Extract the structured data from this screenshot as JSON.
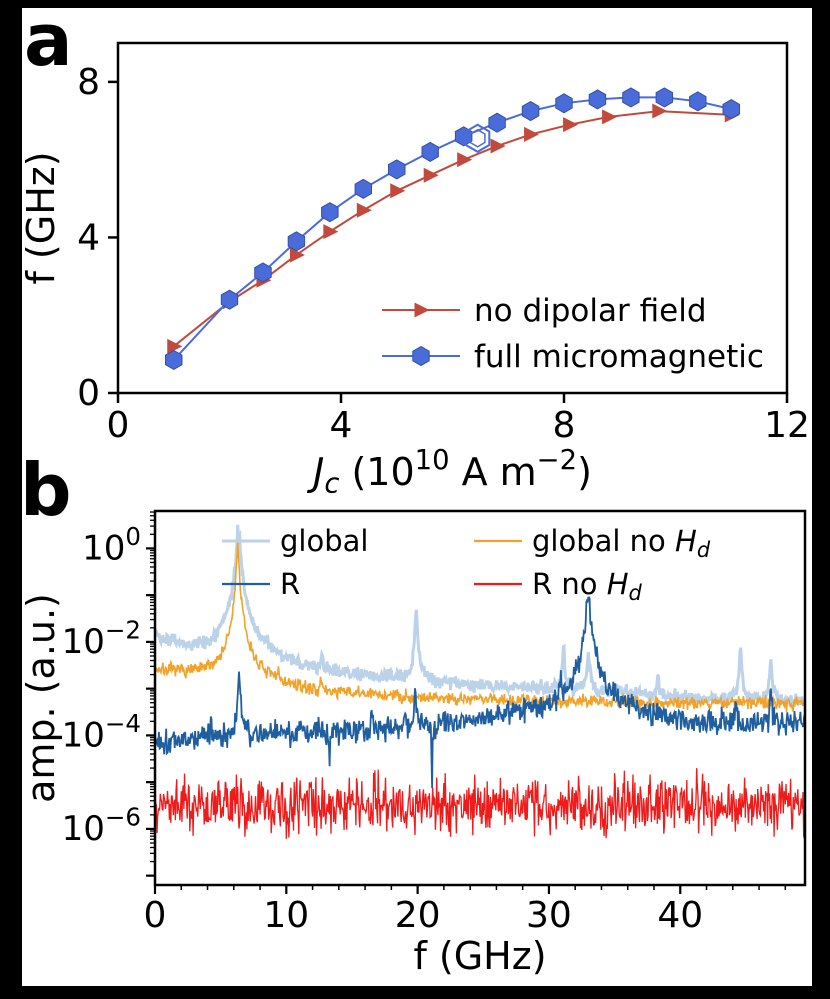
{
  "figure": {
    "panel_a_label": "a",
    "panel_b_label": "b",
    "background": "#000000",
    "panel_background": "#ffffff"
  },
  "colors": {
    "axis": "#000000",
    "panel_a_red": "#c24a3d",
    "panel_a_blue": "#4a6cd9",
    "panel_b_light_blue": "#bcd2e8",
    "panel_b_dark_blue": "#1f5fa0",
    "panel_b_orange": "#f2a229",
    "panel_b_red": "#ee1b1b"
  },
  "chart_data": [
    {
      "id": "panel-a",
      "type": "line",
      "xlabel_parts": [
        {
          "t": "J",
          "style": "italic"
        },
        {
          "t": "c",
          "sub": true,
          "style": "italic"
        },
        {
          "t": " (10"
        },
        {
          "t": "10",
          "sup": true
        },
        {
          "t": " A m"
        },
        {
          "t": "−2",
          "sup": true
        },
        {
          "t": ")"
        }
      ],
      "ylabel": "f (GHz)",
      "xlim": [
        0,
        12
      ],
      "ylim": [
        0,
        9
      ],
      "xticks": [
        0,
        4,
        8,
        12
      ],
      "yticks": [
        0,
        4,
        8
      ],
      "legend_location": "lower right",
      "series": [
        {
          "key": "no-dipolar-field",
          "name": "no dipolar field",
          "color": "#c24a3d",
          "marker": "triangle-right",
          "line_width": 2,
          "x": [
            1.0,
            2.0,
            2.6,
            3.2,
            3.8,
            4.4,
            5.0,
            5.6,
            6.2,
            6.8,
            7.4,
            8.1,
            8.8,
            9.7,
            11.0
          ],
          "y": [
            1.2,
            2.35,
            2.9,
            3.55,
            4.15,
            4.7,
            5.2,
            5.6,
            6.0,
            6.35,
            6.65,
            6.9,
            7.1,
            7.25,
            7.15
          ]
        },
        {
          "key": "full-micromagnetic",
          "name": "full micromagnetic",
          "color": "#4a6cd9",
          "marker": "hexagon",
          "line_width": 2,
          "x": [
            1.0,
            2.0,
            2.6,
            3.2,
            3.8,
            4.4,
            5.0,
            5.6,
            6.2,
            6.8,
            7.4,
            8.0,
            8.6,
            9.2,
            9.8,
            10.4,
            11.0
          ],
          "y": [
            0.85,
            2.4,
            3.1,
            3.9,
            4.65,
            5.25,
            5.75,
            6.2,
            6.6,
            6.95,
            7.25,
            7.45,
            7.55,
            7.6,
            7.6,
            7.5,
            7.3
          ],
          "open_marker_point": {
            "x": 6.45,
            "y": 6.55
          }
        }
      ]
    },
    {
      "id": "panel-b",
      "type": "line",
      "yscale": "log",
      "xlabel": "f (GHz)",
      "ylabel": "amp. (a.u.)",
      "xlim": [
        0,
        49.5
      ],
      "ylog_lim": [
        -7.2,
        0.8
      ],
      "xticks": [
        0,
        10,
        20,
        30,
        40
      ],
      "x_minor_step": 2,
      "ytick_exponents": [
        0,
        -2,
        -4,
        -6
      ],
      "series": [
        {
          "key": "global",
          "label_parts": [
            {
              "t": "global"
            }
          ],
          "color": "#bcd2e8",
          "line_width": 3,
          "seed": 42,
          "noise_log10_sigma": 0.07,
          "baseline_log10": [
            [
              0,
              -1.85
            ],
            [
              2,
              -2.1
            ],
            [
              4,
              -2.3
            ],
            [
              8,
              -2.55
            ],
            [
              12,
              -2.7
            ],
            [
              16,
              -2.8
            ],
            [
              20,
              -2.85
            ],
            [
              24,
              -2.95
            ],
            [
              28,
              -3.0
            ],
            [
              31,
              -3.0
            ],
            [
              33,
              -3.05
            ],
            [
              36,
              -3.1
            ],
            [
              40,
              -3.2
            ],
            [
              44,
              -3.25
            ],
            [
              49.5,
              -3.3
            ]
          ],
          "peaks": [
            {
              "x": 6.35,
              "amp": 3.0,
              "width": 0.1
            },
            {
              "x": 12.7,
              "amp": 0.003,
              "width": 0.08
            },
            {
              "x": 19.9,
              "amp": 0.05,
              "width": 0.07
            },
            {
              "x": 31.1,
              "amp": 0.008,
              "width": 0.06
            },
            {
              "x": 33.0,
              "amp": 0.004,
              "width": 0.1
            },
            {
              "x": 38.3,
              "amp": 0.0012,
              "width": 0.06
            },
            {
              "x": 44.6,
              "amp": 0.006,
              "width": 0.08
            },
            {
              "x": 46.9,
              "amp": 0.004,
              "width": 0.07
            }
          ]
        },
        {
          "key": "global-no-hd",
          "label_parts": [
            {
              "t": "global no "
            },
            {
              "t": "H",
              "style": "italic"
            },
            {
              "t": "d",
              "sub": true,
              "style": "italic"
            }
          ],
          "color": "#f2a229",
          "line_width": 1.6,
          "seed": 7,
          "noise_log10_sigma": 0.07,
          "baseline_log10": [
            [
              0,
              -2.6
            ],
            [
              4,
              -2.75
            ],
            [
              6,
              -2.8
            ],
            [
              8,
              -3.0
            ],
            [
              12,
              -3.1
            ],
            [
              16,
              -3.15
            ],
            [
              20,
              -3.2
            ],
            [
              28,
              -3.25
            ],
            [
              36,
              -3.3
            ],
            [
              49.5,
              -3.3
            ]
          ],
          "peaks": [
            {
              "x": 6.3,
              "amp": 1.3,
              "width": 0.07
            },
            {
              "x": 9.4,
              "amp": 0.0012,
              "width": 0.06
            },
            {
              "x": 12.6,
              "amp": 0.0006,
              "width": 0.06
            }
          ]
        },
        {
          "key": "r",
          "label_parts": [
            {
              "t": "R"
            }
          ],
          "color": "#1f5fa0",
          "line_width": 1.8,
          "seed": 1337,
          "noise_log10_sigma": 0.13,
          "baseline_log10": [
            [
              0,
              -4.15
            ],
            [
              4,
              -4.05
            ],
            [
              8,
              -4.0
            ],
            [
              12,
              -3.95
            ],
            [
              16,
              -3.9
            ],
            [
              20,
              -3.8
            ],
            [
              24,
              -3.65
            ],
            [
              28,
              -3.55
            ],
            [
              31,
              -3.45
            ],
            [
              33,
              -3.4
            ],
            [
              35,
              -3.55
            ],
            [
              38,
              -3.65
            ],
            [
              42,
              -3.75
            ],
            [
              46,
              -3.8
            ],
            [
              49.5,
              -3.7
            ]
          ],
          "peaks": [
            {
              "x": 4.3,
              "amp": 0.00015,
              "width": 0.05
            },
            {
              "x": 6.4,
              "amp": 0.002,
              "width": 0.07
            },
            {
              "x": 9.6,
              "amp": 0.00012,
              "width": 0.05
            },
            {
              "x": 16.5,
              "amp": 0.0004,
              "width": 0.05
            },
            {
              "x": 19.8,
              "amp": 0.0007,
              "width": 0.05
            },
            {
              "x": 30.9,
              "amp": 0.0012,
              "width": 0.05
            },
            {
              "x": 33.0,
              "amp": 0.13,
              "width": 0.12
            },
            {
              "x": 44.2,
              "amp": 0.0005,
              "width": 0.05
            },
            {
              "x": 46.9,
              "amp": 0.0012,
              "width": 0.05
            }
          ],
          "dips": [
            {
              "x": 21.1,
              "depth": 1.3,
              "width": 0.04
            },
            {
              "x": 13.3,
              "depth": 0.7,
              "width": 0.04
            }
          ]
        },
        {
          "key": "r-no-hd",
          "label_parts": [
            {
              "t": "R no "
            },
            {
              "t": "H",
              "style": "italic"
            },
            {
              "t": "d",
              "sub": true,
              "style": "italic"
            }
          ],
          "color": "#ee1b1b",
          "line_width": 1.3,
          "seed": 99,
          "noise_log10_sigma": 0.3,
          "baseline_log10": [
            [
              0,
              -5.5
            ],
            [
              49.5,
              -5.5
            ]
          ],
          "peaks": []
        }
      ],
      "legend": {
        "columns": [
          [
            "global",
            "r"
          ],
          [
            "global-no-hd",
            "r-no-hd"
          ]
        ]
      }
    }
  ]
}
